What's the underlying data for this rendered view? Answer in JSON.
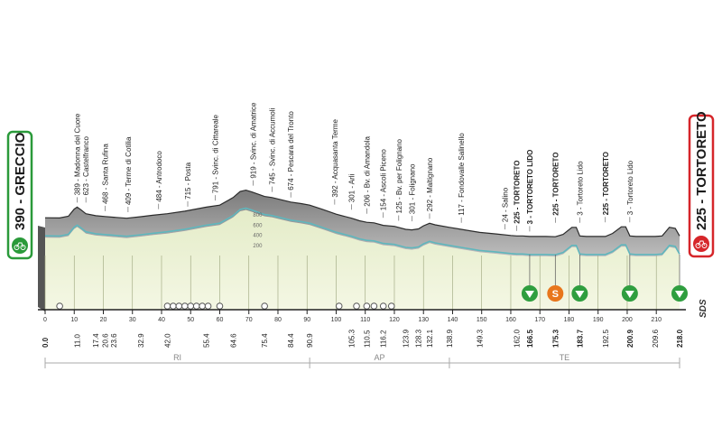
{
  "chart_data": {
    "type": "area",
    "title": "",
    "xlabel": "",
    "ylabel": "",
    "xlim": [
      0,
      218
    ],
    "ylim": [
      0,
      1000
    ],
    "grid": false,
    "start": {
      "altitude": "390",
      "name": "GRECCIO"
    },
    "finish": {
      "altitude": "225",
      "name": "TORTORETO"
    },
    "profile": [
      [
        0,
        390
      ],
      [
        5,
        385
      ],
      [
        8,
        420
      ],
      [
        10,
        560
      ],
      [
        11,
        600
      ],
      [
        12.5,
        540
      ],
      [
        14,
        470
      ],
      [
        17.4,
        430
      ],
      [
        20.6,
        415
      ],
      [
        23.6,
        400
      ],
      [
        28,
        380
      ],
      [
        32.9,
        410
      ],
      [
        37,
        440
      ],
      [
        42,
        470
      ],
      [
        48,
        520
      ],
      [
        55.4,
        600
      ],
      [
        60,
        640
      ],
      [
        64.6,
        790
      ],
      [
        67,
        910
      ],
      [
        69,
        935
      ],
      [
        71,
        900
      ],
      [
        75.4,
        810
      ],
      [
        78,
        790
      ],
      [
        84.4,
        700
      ],
      [
        88,
        670
      ],
      [
        90.9,
        640
      ],
      [
        95,
        560
      ],
      [
        100,
        460
      ],
      [
        105.3,
        380
      ],
      [
        108,
        330
      ],
      [
        110.5,
        300
      ],
      [
        113,
        290
      ],
      [
        116.2,
        240
      ],
      [
        120,
        220
      ],
      [
        123.9,
        160
      ],
      [
        126,
        150
      ],
      [
        128.3,
        170
      ],
      [
        130,
        230
      ],
      [
        132.1,
        280
      ],
      [
        134,
        250
      ],
      [
        138.9,
        200
      ],
      [
        143,
        160
      ],
      [
        149.3,
        100
      ],
      [
        155,
        70
      ],
      [
        160,
        40
      ],
      [
        162,
        30
      ],
      [
        164,
        30
      ],
      [
        166.5,
        20
      ],
      [
        167.5,
        20
      ],
      [
        172,
        20
      ],
      [
        175.3,
        15
      ],
      [
        178,
        60
      ],
      [
        181,
        200
      ],
      [
        182.5,
        200
      ],
      [
        183.7,
        30
      ],
      [
        186,
        20
      ],
      [
        190,
        20
      ],
      [
        192.5,
        20
      ],
      [
        195,
        80
      ],
      [
        198,
        210
      ],
      [
        199.5,
        210
      ],
      [
        200.9,
        30
      ],
      [
        203,
        20
      ],
      [
        209.6,
        20
      ],
      [
        212,
        30
      ],
      [
        214.5,
        200
      ],
      [
        216.5,
        180
      ],
      [
        218,
        30
      ]
    ],
    "x_ticks": [
      "0",
      "10",
      "20",
      "30",
      "40",
      "50",
      "60",
      "70",
      "80",
      "90",
      "100",
      "110",
      "120",
      "130",
      "140",
      "150",
      "160",
      "170",
      "180",
      "190",
      "200",
      "210"
    ],
    "distance_labels": [
      {
        "x": 0,
        "label": "0.0",
        "bold": true
      },
      {
        "x": 11,
        "label": "11.0"
      },
      {
        "x": 17.4,
        "label": "17.4"
      },
      {
        "x": 20.6,
        "label": "20.6"
      },
      {
        "x": 23.6,
        "label": "23.6"
      },
      {
        "x": 32.9,
        "label": "32.9"
      },
      {
        "x": 42,
        "label": "42.0"
      },
      {
        "x": 55.4,
        "label": "55.4"
      },
      {
        "x": 64.6,
        "label": "64.6"
      },
      {
        "x": 75.4,
        "label": "75.4"
      },
      {
        "x": 84.4,
        "label": "84.4"
      },
      {
        "x": 90.9,
        "label": "90.9"
      },
      {
        "x": 105.3,
        "label": "105.3"
      },
      {
        "x": 110.5,
        "label": "110.5"
      },
      {
        "x": 116.2,
        "label": "116.2"
      },
      {
        "x": 123.9,
        "label": "123.9"
      },
      {
        "x": 128.3,
        "label": "128.3"
      },
      {
        "x": 132.1,
        "label": "132.1"
      },
      {
        "x": 138.9,
        "label": "138.9"
      },
      {
        "x": 149.3,
        "label": "149.3"
      },
      {
        "x": 162,
        "label": "162.0"
      },
      {
        "x": 166.5,
        "label": "166.5",
        "bold": true
      },
      {
        "x": 175.3,
        "label": "175.3",
        "bold": true
      },
      {
        "x": 183.7,
        "label": "183.7",
        "bold": true
      },
      {
        "x": 192.5,
        "label": "192.5"
      },
      {
        "x": 200.9,
        "label": "200.9",
        "bold": true
      },
      {
        "x": 209.6,
        "label": "209.6"
      },
      {
        "x": 218,
        "label": "218.0",
        "bold": true
      }
    ],
    "place_labels": [
      {
        "x": 11,
        "label": "389 - Madonna del Cuore"
      },
      {
        "x": 14,
        "label": "623 - Castelfranco"
      },
      {
        "x": 20.6,
        "label": "468 - Santa Rufina"
      },
      {
        "x": 28.5,
        "label": "409 - Terme di Cotilia"
      },
      {
        "x": 39,
        "label": "484 - Antrodoco"
      },
      {
        "x": 49,
        "label": "715 - Posta"
      },
      {
        "x": 58.5,
        "label": "791 - Svinc. di Cittareale"
      },
      {
        "x": 71.5,
        "label": "919 - Svinc. di Amatrice"
      },
      {
        "x": 78,
        "label": "745 - Svinc. di Accumoli"
      },
      {
        "x": 84.4,
        "label": "674 - Pescara del Tronto"
      },
      {
        "x": 99.5,
        "label": "392 - Acquasanta Terme"
      },
      {
        "x": 105.3,
        "label": "301 - Arli"
      },
      {
        "x": 110.5,
        "label": "206 - Bv. di Amandola"
      },
      {
        "x": 116.2,
        "label": "154 - Ascoli Piceno"
      },
      {
        "x": 121.5,
        "label": "125 - Bv. per Folignano"
      },
      {
        "x": 126,
        "label": "301 - Folignano"
      },
      {
        "x": 132.1,
        "label": "292 - Maltignano"
      },
      {
        "x": 143,
        "label": "117 - Fondovalle Salinello"
      },
      {
        "x": 158,
        "label": "24 - Salino"
      },
      {
        "x": 162,
        "label": "225 - TORTORETO",
        "bold": true
      },
      {
        "x": 166.5,
        "label": "3 - TORTORETO LIDO",
        "bold": true
      },
      {
        "x": 175.3,
        "label": "225 - TORTORETO",
        "bold": true
      },
      {
        "x": 183.7,
        "label": "3 - Tortoreto Lido"
      },
      {
        "x": 192.5,
        "label": "225 - TORTORETO",
        "bold": true
      },
      {
        "x": 200.9,
        "label": "3 - Tortoreto Lido"
      }
    ],
    "elevation_scale": [
      "800",
      "600",
      "400",
      "200"
    ],
    "climb_markers": [
      166.5,
      183.7,
      200.9,
      218
    ],
    "sprint_marker": {
      "x": 175.3,
      "label": "S"
    },
    "small_markers": [
      5,
      42,
      44,
      46,
      48,
      50,
      52,
      54,
      56,
      60,
      75.4,
      101,
      107,
      110.5,
      113,
      116.2,
      119
    ],
    "provinces": [
      {
        "label": "RI",
        "from": 0,
        "to": 90.9
      },
      {
        "label": "AP",
        "from": 90.9,
        "to": 138.9
      },
      {
        "label": "TE",
        "from": 138.9,
        "to": 218
      }
    ],
    "brand": "SDS"
  }
}
